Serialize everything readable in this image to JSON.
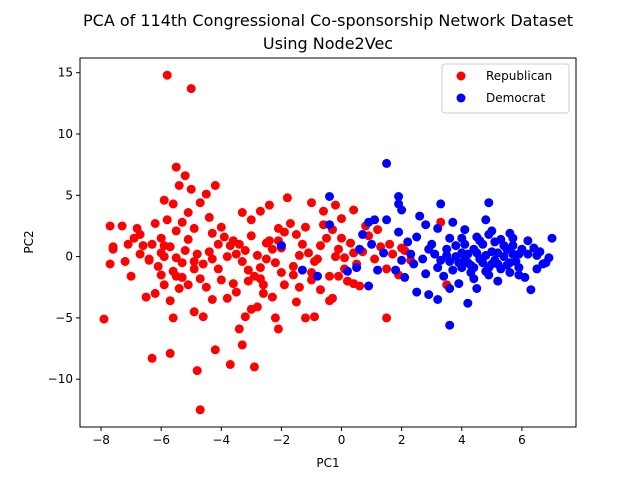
{
  "chart_data": {
    "type": "scatter",
    "title_lines": [
      "PCA of 114th Congressional Co-sponsorship Network Dataset",
      "Using Node2Vec"
    ],
    "xlabel": "PC1",
    "ylabel": "PC2",
    "xlim": [
      -8.7,
      7.8
    ],
    "ylim": [
      -13.9,
      16.2
    ],
    "xticks": [
      -8,
      -6,
      -4,
      -2,
      0,
      2,
      4,
      6
    ],
    "yticks": [
      -10,
      -5,
      0,
      5,
      10,
      15
    ],
    "legend_position": "top-right",
    "grid": false,
    "series": [
      {
        "name": "Republican",
        "color": "#ff0000",
        "points": [
          [
            -5.8,
            14.8
          ],
          [
            -5.0,
            13.7
          ],
          [
            -5.5,
            7.3
          ],
          [
            -5.2,
            6.6
          ],
          [
            -5.4,
            5.8
          ],
          [
            -5.0,
            5.5
          ],
          [
            -4.5,
            5.1
          ],
          [
            -4.2,
            5.8
          ],
          [
            -5.6,
            4.3
          ],
          [
            -5.9,
            4.6
          ],
          [
            -6.2,
            2.7
          ],
          [
            -5.8,
            3.0
          ],
          [
            -5.5,
            2.1
          ],
          [
            -6.0,
            1.5
          ],
          [
            -6.3,
            1.0
          ],
          [
            -5.7,
            0.8
          ],
          [
            -5.2,
            0.5
          ],
          [
            -5.9,
            0.0
          ],
          [
            -6.4,
            -0.3
          ],
          [
            -6.7,
            0.2
          ],
          [
            -6.1,
            -0.8
          ],
          [
            -5.6,
            -1.2
          ],
          [
            -5.3,
            -0.5
          ],
          [
            -4.9,
            -1.0
          ],
          [
            -4.6,
            -0.6
          ],
          [
            -4.4,
            0.4
          ],
          [
            -4.1,
            1.0
          ],
          [
            -3.9,
            1.6
          ],
          [
            -3.7,
            0.9
          ],
          [
            -3.5,
            0.2
          ],
          [
            -3.3,
            -0.4
          ],
          [
            -3.1,
            -1.1
          ],
          [
            -2.9,
            -1.6
          ],
          [
            -2.7,
            -0.9
          ],
          [
            -2.5,
            -0.2
          ],
          [
            -2.3,
            0.6
          ],
          [
            -2.1,
            1.3
          ],
          [
            -1.9,
            2.0
          ],
          [
            -1.7,
            2.7
          ],
          [
            -1.5,
            1.8
          ],
          [
            -1.3,
            1.0
          ],
          [
            -1.1,
            0.3
          ],
          [
            -0.9,
            -0.4
          ],
          [
            -0.7,
            0.9
          ],
          [
            -0.5,
            1.5
          ],
          [
            -0.3,
            2.2
          ],
          [
            -0.1,
            0.6
          ],
          [
            0.1,
            -0.1
          ],
          [
            0.3,
            1.1
          ],
          [
            0.5,
            -0.6
          ],
          [
            0.7,
            0.4
          ],
          [
            0.9,
            1.7
          ],
          [
            1.1,
            -0.2
          ],
          [
            1.3,
            0.8
          ],
          [
            1.5,
            -1.0
          ],
          [
            1.7,
            0.2
          ],
          [
            1.9,
            -1.5
          ],
          [
            2.1,
            0.5
          ],
          [
            2.3,
            -0.3
          ],
          [
            0.6,
            -2.4
          ],
          [
            -7.9,
            -5.1
          ],
          [
            -7.7,
            2.5
          ],
          [
            -7.7,
            -0.6
          ],
          [
            -7.6,
            0.8
          ],
          [
            -7.6,
            0.6
          ],
          [
            -7.3,
            2.5
          ],
          [
            -7.2,
            -0.4
          ],
          [
            -7.1,
            1.0
          ],
          [
            -7.0,
            -1.6
          ],
          [
            -6.8,
            2.3
          ],
          [
            -6.7,
            1.8
          ],
          [
            -6.5,
            -3.3
          ],
          [
            -6.4,
            -0.2
          ],
          [
            -6.3,
            -8.3
          ],
          [
            -6.2,
            -3.0
          ],
          [
            -6.0,
            -1.5
          ],
          [
            -5.9,
            -2.3
          ],
          [
            -5.7,
            -3.6
          ],
          [
            -5.6,
            -5.0
          ],
          [
            -5.7,
            -7.9
          ],
          [
            -5.4,
            -2.6
          ],
          [
            -5.3,
            -1.7
          ],
          [
            -5.1,
            -2.3
          ],
          [
            -4.9,
            -4.5
          ],
          [
            -4.6,
            -4.9
          ],
          [
            -4.8,
            -9.3
          ],
          [
            -4.7,
            -12.5
          ],
          [
            -4.5,
            -2.5
          ],
          [
            -4.3,
            -3.5
          ],
          [
            -4.2,
            -7.6
          ],
          [
            -4.0,
            -1.9
          ],
          [
            -3.8,
            -3.4
          ],
          [
            -3.7,
            -8.8
          ],
          [
            -3.5,
            -2.9
          ],
          [
            -3.4,
            -5.9
          ],
          [
            -3.3,
            -7.2
          ],
          [
            -3.2,
            -4.9
          ],
          [
            -3.1,
            -2.0
          ],
          [
            -3.0,
            -4.3
          ],
          [
            -2.9,
            -9.0
          ],
          [
            -2.8,
            -4.1
          ],
          [
            -2.7,
            -1.8
          ],
          [
            -2.6,
            -3.0
          ],
          [
            -2.3,
            -3.3
          ],
          [
            -2.2,
            -5.0
          ],
          [
            -2.1,
            -5.9
          ],
          [
            -2.0,
            -1.3
          ],
          [
            -1.9,
            -2.3
          ],
          [
            -1.5,
            -3.7
          ],
          [
            -1.4,
            -2.5
          ],
          [
            -1.2,
            -5.0
          ],
          [
            -1.0,
            -1.9
          ],
          [
            -0.9,
            -4.9
          ],
          [
            -0.7,
            -2.7
          ],
          [
            -0.4,
            -3.6
          ],
          [
            -0.3,
            -3.4
          ],
          [
            -0.1,
            -1.6
          ],
          [
            0.1,
            -1.0
          ],
          [
            0.4,
            -2.2
          ],
          [
            1.5,
            -5.0
          ],
          [
            -4.7,
            4.4
          ],
          [
            -5.1,
            3.6
          ],
          [
            -4.4,
            3.2
          ],
          [
            -4.0,
            2.4
          ],
          [
            -3.3,
            3.6
          ],
          [
            -3.0,
            3.0
          ],
          [
            -2.7,
            3.7
          ],
          [
            -2.4,
            4.2
          ],
          [
            -1.8,
            4.8
          ],
          [
            -1.0,
            4.4
          ],
          [
            -0.6,
            3.7
          ],
          [
            0.0,
            3.1
          ],
          [
            0.4,
            3.8
          ],
          [
            0.8,
            2.5
          ],
          [
            -0.2,
            4.2
          ],
          [
            -5.3,
            2.8
          ],
          [
            -4.9,
            2.3
          ],
          [
            -4.3,
            1.9
          ],
          [
            -3.6,
            1.3
          ],
          [
            -3.0,
            1.7
          ],
          [
            -2.5,
            1.1
          ],
          [
            -2.0,
            0.7
          ],
          [
            -1.4,
            0.1
          ],
          [
            -0.8,
            -0.2
          ],
          [
            -0.2,
            0.0
          ],
          [
            0.4,
            0.3
          ],
          [
            -6.9,
            1.5
          ],
          [
            -6.6,
            0.9
          ],
          [
            -6.0,
            0.3
          ],
          [
            -5.5,
            -0.1
          ],
          [
            -4.8,
            0.2
          ],
          [
            -4.3,
            -0.2
          ],
          [
            -3.8,
            0.0
          ],
          [
            -3.2,
            0.5
          ],
          [
            -2.8,
            0.1
          ],
          [
            -2.2,
            -0.5
          ],
          [
            -1.6,
            -0.8
          ],
          [
            -1.0,
            -1.3
          ],
          [
            -0.4,
            -1.6
          ],
          [
            0.2,
            -2.0
          ],
          [
            3.3,
            2.8
          ],
          [
            3.5,
            -2.3
          ],
          [
            2.0,
            0.7
          ],
          [
            -5.9,
            0.9
          ],
          [
            -5.5,
            -1.6
          ],
          [
            -4.7,
            -1.8
          ],
          [
            -4.1,
            -1.0
          ],
          [
            -3.6,
            -2.2
          ],
          [
            -2.6,
            -2.3
          ],
          [
            -2.4,
            1.3
          ],
          [
            -1.6,
            -1.5
          ],
          [
            -1.2,
            2.4
          ],
          [
            -0.6,
            2.6
          ],
          [
            0.0,
            1.5
          ],
          [
            1.2,
            2.2
          ],
          [
            1.6,
            1.0
          ],
          [
            -4.9,
            -0.4
          ],
          [
            -5.1,
            1.4
          ],
          [
            -3.4,
            1.0
          ],
          [
            -2.1,
            2.3
          ]
        ]
      },
      {
        "name": "Democrat",
        "color": "#0000ff",
        "points": [
          [
            1.5,
            7.6
          ],
          [
            -0.4,
            4.9
          ],
          [
            1.9,
            4.9
          ],
          [
            1.9,
            4.3
          ],
          [
            3.3,
            4.3
          ],
          [
            4.9,
            4.4
          ],
          [
            2.0,
            3.8
          ],
          [
            1.5,
            3.0
          ],
          [
            0.9,
            2.8
          ],
          [
            1.9,
            2.0
          ],
          [
            2.8,
            2.6
          ],
          [
            3.2,
            2.3
          ],
          [
            3.6,
            1.5
          ],
          [
            4.1,
            1.0
          ],
          [
            4.5,
            1.6
          ],
          [
            5.0,
            2.1
          ],
          [
            5.3,
            1.4
          ],
          [
            5.7,
            0.9
          ],
          [
            6.2,
            1.3
          ],
          [
            6.6,
            0.4
          ],
          [
            7.0,
            1.5
          ],
          [
            6.9,
            -0.1
          ],
          [
            6.5,
            -1.0
          ],
          [
            6.1,
            -1.7
          ],
          [
            5.6,
            -1.3
          ],
          [
            5.2,
            -0.6
          ],
          [
            4.8,
            -1.2
          ],
          [
            4.4,
            -1.8
          ],
          [
            4.0,
            -0.9
          ],
          [
            3.6,
            -0.4
          ],
          [
            3.2,
            -0.9
          ],
          [
            2.8,
            -1.4
          ],
          [
            2.4,
            -0.6
          ],
          [
            2.1,
            -1.7
          ],
          [
            2.5,
            -2.9
          ],
          [
            2.9,
            -3.1
          ],
          [
            3.2,
            -3.5
          ],
          [
            4.2,
            -3.8
          ],
          [
            3.6,
            -5.6
          ],
          [
            6.3,
            -2.7
          ],
          [
            -2.0,
            0.9
          ],
          [
            -1.3,
            -1.1
          ],
          [
            -0.4,
            2.6
          ],
          [
            0.5,
            -0.9
          ],
          [
            1.2,
            -1.1
          ],
          [
            0.9,
            -2.4
          ],
          [
            3.8,
            0.0
          ],
          [
            4.2,
            0.2
          ],
          [
            4.6,
            -0.2
          ],
          [
            5.0,
            0.4
          ],
          [
            5.4,
            0.0
          ],
          [
            5.8,
            -0.4
          ],
          [
            6.2,
            0.2
          ],
          [
            4.4,
            0.6
          ],
          [
            4.7,
            1.0
          ],
          [
            5.1,
            1.2
          ],
          [
            5.5,
            0.6
          ],
          [
            5.9,
            0.2
          ],
          [
            3.9,
            -0.5
          ],
          [
            4.3,
            -0.7
          ],
          [
            4.7,
            -0.5
          ],
          [
            5.1,
            -0.3
          ],
          [
            5.5,
            -0.7
          ],
          [
            5.9,
            -0.9
          ],
          [
            3.5,
            0.6
          ],
          [
            3.1,
            0.2
          ],
          [
            2.7,
            -0.2
          ],
          [
            2.3,
            0.2
          ],
          [
            3.0,
            1.0
          ],
          [
            3.4,
            -1.6
          ],
          [
            3.9,
            -2.2
          ],
          [
            4.5,
            -2.6
          ],
          [
            5.2,
            -2.0
          ],
          [
            5.9,
            -1.5
          ],
          [
            6.8,
            -0.5
          ],
          [
            4.1,
            2.2
          ],
          [
            4.8,
            3.0
          ],
          [
            5.6,
            1.9
          ],
          [
            3.7,
            2.8
          ],
          [
            2.6,
            3.3
          ],
          [
            2.2,
            1.2
          ],
          [
            2.0,
            -0.3
          ],
          [
            1.8,
            -1.1
          ],
          [
            1.4,
            0.3
          ],
          [
            1.0,
            1.0
          ],
          [
            0.6,
            0.6
          ],
          [
            0.2,
            -1.2
          ],
          [
            -0.8,
            -1.6
          ],
          [
            0.7,
            1.8
          ],
          [
            1.1,
            3.0
          ],
          [
            4.0,
            1.5
          ],
          [
            4.9,
            1.8
          ],
          [
            5.7,
            1.5
          ],
          [
            6.4,
            0.7
          ],
          [
            6.7,
            -0.6
          ],
          [
            4.3,
            -1.3
          ],
          [
            3.7,
            -1.1
          ],
          [
            2.9,
            0.6
          ],
          [
            5.3,
            -1.0
          ],
          [
            4.9,
            -0.9
          ],
          [
            4.5,
            0.3
          ],
          [
            4.1,
            -0.2
          ],
          [
            3.3,
            -0.3
          ],
          [
            5.7,
            0.2
          ],
          [
            6.0,
            0.6
          ],
          [
            3.8,
            0.9
          ],
          [
            4.6,
            1.3
          ],
          [
            5.4,
            0.9
          ],
          [
            2.5,
            1.6
          ],
          [
            3.6,
            -2.6
          ],
          [
            4.2,
            -0.5
          ],
          [
            4.8,
            0.1
          ],
          [
            5.2,
            0.3
          ],
          [
            4.4,
            -0.9
          ],
          [
            5.0,
            -0.6
          ],
          [
            3.5,
            0.1
          ],
          [
            6.5,
            0.1
          ],
          [
            4.9,
            -1.5
          ],
          [
            5.6,
            -0.5
          ],
          [
            4.0,
            0.3
          ]
        ]
      }
    ]
  }
}
